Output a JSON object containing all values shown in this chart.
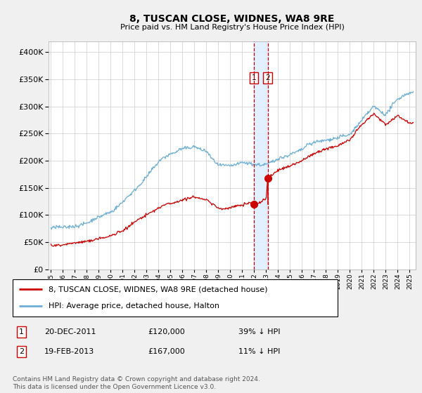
{
  "title": "8, TUSCAN CLOSE, WIDNES, WA8 9RE",
  "subtitle": "Price paid vs. HM Land Registry's House Price Index (HPI)",
  "hpi_color": "#6baed6",
  "price_color": "#cc0000",
  "marker1_date_num": 2011.97,
  "marker2_date_num": 2013.13,
  "sale1_date": "20-DEC-2011",
  "sale1_price": "£120,000",
  "sale1_price_val": 120000,
  "sale1_hpi": "39% ↓ HPI",
  "sale2_date": "19-FEB-2013",
  "sale2_price": "£167,000",
  "sale2_price_val": 167000,
  "sale2_hpi": "11% ↓ HPI",
  "legend1": "8, TUSCAN CLOSE, WIDNES, WA8 9RE (detached house)",
  "legend2": "HPI: Average price, detached house, Halton",
  "footer": "Contains HM Land Registry data © Crown copyright and database right 2024.\nThis data is licensed under the Open Government Licence v3.0.",
  "ylim": [
    0,
    420000
  ],
  "xlim_start": 1994.8,
  "xlim_end": 2025.5,
  "plot_bg": "#ffffff",
  "fig_bg": "#f0f0f0",
  "grid_color": "#cccccc",
  "hpi_xpts": [
    1995,
    1996,
    1997,
    1998,
    1999,
    2000,
    2001,
    2002,
    2003,
    2004,
    2005,
    2006,
    2007,
    2008,
    2009,
    2010,
    2011,
    2012,
    2013,
    2014,
    2015,
    2016,
    2017,
    2018,
    2019,
    2020,
    2021,
    2022,
    2023,
    2024,
    2025
  ],
  "hpi_ypts": [
    75000,
    78000,
    83000,
    90000,
    100000,
    110000,
    128000,
    150000,
    175000,
    200000,
    215000,
    220000,
    225000,
    215000,
    192000,
    190000,
    193000,
    188000,
    190000,
    198000,
    205000,
    215000,
    225000,
    232000,
    238000,
    242000,
    270000,
    300000,
    285000,
    315000,
    325000
  ],
  "price_xpts": [
    1995,
    1996,
    1997,
    1998,
    1999,
    2000,
    2001,
    2002,
    2003,
    2004,
    2005,
    2006,
    2007,
    2008,
    2009,
    2010,
    2011,
    2011.97,
    2012,
    2013,
    2013.13,
    2014,
    2015,
    2016,
    2017,
    2018,
    2019,
    2020,
    2021,
    2022,
    2023,
    2024,
    2025
  ],
  "price_ypts": [
    44000,
    46000,
    48000,
    52000,
    57000,
    62000,
    72000,
    88000,
    104000,
    118000,
    125000,
    130000,
    135000,
    128000,
    112000,
    112000,
    117000,
    120000,
    115000,
    130000,
    167000,
    183000,
    193000,
    203000,
    215000,
    222000,
    228000,
    238000,
    265000,
    285000,
    265000,
    280000,
    270000
  ]
}
